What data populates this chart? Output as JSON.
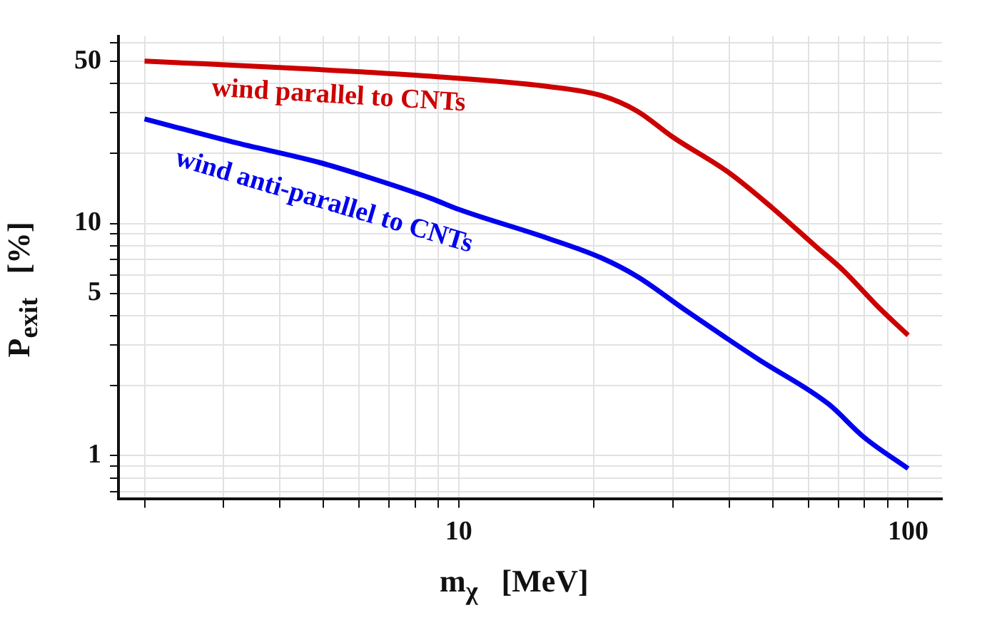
{
  "chart_data": {
    "type": "line",
    "xlabel": "m$_{χ}$   [MeV]",
    "ylabel": "P$_{exit}$   [%]",
    "log": "xy",
    "grid": true,
    "legend": false,
    "marker": "none",
    "line_style": "solid",
    "xlim": [
      1.75,
      119
    ],
    "ylim": [
      0.65,
      64
    ],
    "xticks": [
      {
        "value": 2,
        "label": null
      },
      {
        "value": 3,
        "label": null
      },
      {
        "value": 4,
        "label": null
      },
      {
        "value": 5,
        "label": null
      },
      {
        "value": 6,
        "label": null
      },
      {
        "value": 7,
        "label": null
      },
      {
        "value": 8,
        "label": null
      },
      {
        "value": 9,
        "label": null
      },
      10,
      {
        "value": 20,
        "label": null
      },
      {
        "value": 30,
        "label": null
      },
      {
        "value": 40,
        "label": null
      },
      {
        "value": 50,
        "label": null
      },
      {
        "value": 60,
        "label": null
      },
      {
        "value": 70,
        "label": null
      },
      {
        "value": 80,
        "label": null
      },
      {
        "value": 90,
        "label": null
      },
      100
    ],
    "yticks": [
      {
        "value": 0.7,
        "label": null
      },
      {
        "value": 0.8,
        "label": null
      },
      {
        "value": 0.9,
        "label": null
      },
      1,
      {
        "value": 2,
        "label": null
      },
      {
        "value": 3,
        "label": null
      },
      {
        "value": 4,
        "label": null
      },
      5,
      {
        "value": 6,
        "label": null
      },
      {
        "value": 7,
        "label": null
      },
      {
        "value": 8,
        "label": null
      },
      {
        "value": 9,
        "label": null
      },
      10,
      {
        "value": 20,
        "label": null
      },
      {
        "value": 30,
        "label": null
      },
      {
        "value": 40,
        "label": null
      },
      50,
      {
        "value": 60,
        "label": null
      }
    ],
    "series": [
      {
        "name": "wind parallel to CNTs",
        "color": "#cc0000",
        "x": [
          2,
          4.9,
          8.7,
          15.6,
          20.8,
          25,
          29.9,
          40,
          49.8,
          62.6,
          71.6,
          86,
          100
        ],
        "values": [
          50,
          46,
          43,
          39,
          35.5,
          30.4,
          23.6,
          16.5,
          11.7,
          7.9,
          6.3,
          4.35,
          3.3
        ]
      },
      {
        "name": "wind anti-parallel to CNTs",
        "color": "#0000ee",
        "x": [
          2,
          3.15,
          4.9,
          6.5,
          8.7,
          10,
          15.6,
          20.8,
          25,
          32.2,
          46.3,
          66.5,
          79.8,
          100
        ],
        "values": [
          28.2,
          22.4,
          18.3,
          15.5,
          12.8,
          11.5,
          8.7,
          7.1,
          5.9,
          4.19,
          2.61,
          1.67,
          1.2,
          0.88
        ]
      }
    ]
  }
}
